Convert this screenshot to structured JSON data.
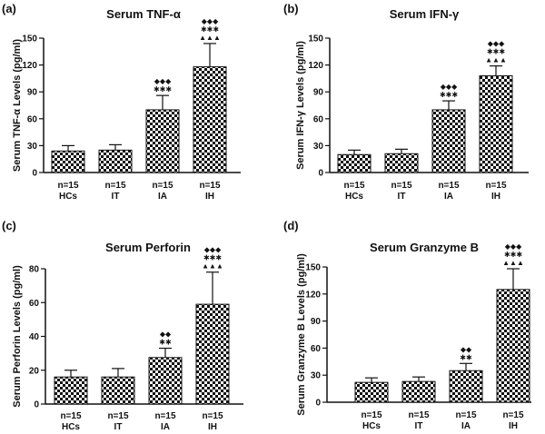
{
  "colors": {
    "axis": "#111111",
    "bar_fill_light": "#ffffff",
    "bar_fill_dark": "#111111"
  },
  "chart_data": [
    {
      "panel": "(a)",
      "type": "bar",
      "title": "Serum TNF-α",
      "ylabel": "Serum TNF-α Levels (pg/ml)",
      "ylim": [
        0,
        150
      ],
      "yticks": [
        0,
        30,
        60,
        90,
        120,
        150
      ],
      "categories": [
        "HCs",
        "IT",
        "IA",
        "IH"
      ],
      "n_labels": [
        "n=15",
        "n=15",
        "n=15",
        "n=15"
      ],
      "values": [
        24,
        25,
        70,
        118
      ],
      "errors": [
        6,
        6,
        16,
        26
      ],
      "significance": [
        [],
        [],
        [
          "◆◆◆",
          "✱✱✱"
        ],
        [
          "◆◆◆",
          "✱✱✱",
          "▲▲▲"
        ]
      ]
    },
    {
      "panel": "(b)",
      "type": "bar",
      "title": "Serum IFN-γ",
      "ylabel": "Serum IFN-γ Levels (pg/ml)",
      "ylim": [
        0,
        150
      ],
      "yticks": [
        0,
        30,
        60,
        90,
        120,
        150
      ],
      "categories": [
        "HCs",
        "IT",
        "IA",
        "IH"
      ],
      "n_labels": [
        "n=15",
        "n=15",
        "n=15",
        "n=15"
      ],
      "values": [
        20,
        21,
        70,
        108
      ],
      "errors": [
        5,
        5,
        10,
        11
      ],
      "significance": [
        [],
        [],
        [
          "◆◆◆",
          "✱✱✱"
        ],
        [
          "◆◆◆",
          "✱✱✱",
          "▲▲▲"
        ]
      ]
    },
    {
      "panel": "(c)",
      "type": "bar",
      "title": "Serum Perforin",
      "ylabel": "Serum Perforin Levels (pg/ml)",
      "ylim": [
        0,
        80
      ],
      "yticks": [
        0,
        20,
        40,
        60,
        80
      ],
      "categories": [
        "HCs",
        "IT",
        "IA",
        "IH"
      ],
      "n_labels": [
        "n=15",
        "n=15",
        "n=15",
        "n=15"
      ],
      "values": [
        16,
        16,
        27.5,
        59
      ],
      "errors": [
        4,
        5,
        5.5,
        19
      ],
      "significance": [
        [],
        [],
        [
          "◆◆",
          "✱✱"
        ],
        [
          "◆◆◆",
          "✱✱✱",
          "▲▲▲"
        ]
      ]
    },
    {
      "panel": "(d)",
      "type": "bar",
      "title": "Serum Granzyme B",
      "ylabel": "Serum Granzyme B Levels (pg/ml)",
      "ylim": [
        0,
        150
      ],
      "yticks": [
        0,
        30,
        60,
        90,
        120,
        150
      ],
      "categories": [
        "HCs",
        "IT",
        "IA",
        "IH"
      ],
      "n_labels": [
        "n=15",
        "n=15",
        "n=15",
        "n=15"
      ],
      "values": [
        22,
        23,
        35,
        125
      ],
      "errors": [
        5,
        5,
        8,
        23
      ],
      "significance": [
        [],
        [],
        [
          "◆◆",
          "✱✱"
        ],
        [
          "◆◆◆",
          "✱✱✱",
          "▲▲▲"
        ]
      ]
    }
  ]
}
